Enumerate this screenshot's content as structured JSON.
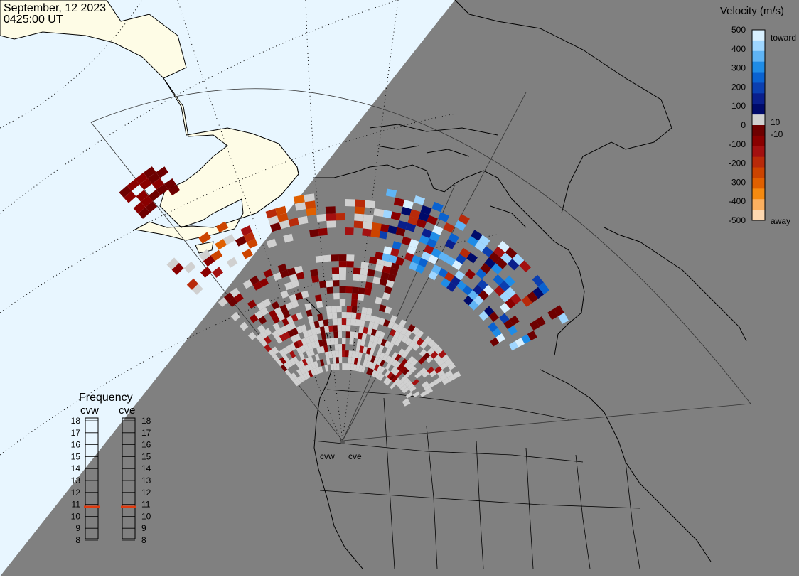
{
  "header": {
    "date": "September, 12 2023",
    "time": "0425:00 UT"
  },
  "colors": {
    "night_background": "#808080",
    "day_ocean": "#e8f6ff",
    "day_land": "#fefce6",
    "ground_scatter": "#d0d0d0",
    "active_frequency": "#e03c10"
  },
  "velocity_scale": {
    "title": "Velocity (m/s)",
    "toward_label": "toward",
    "away_label": "away",
    "tick_labels": [
      "500",
      "400",
      "300",
      "200",
      "100",
      "0",
      "-100",
      "-200",
      "-300",
      "-400",
      "-500"
    ],
    "inner_labels": [
      "10",
      "-10"
    ],
    "colors_top_to_bottom": [
      "#d8f0ff",
      "#9fd6ff",
      "#5fb4f5",
      "#1f8ce6",
      "#0a62d0",
      "#0b3fb0",
      "#0a1f8c",
      "#000a6a",
      "#d0d0d0",
      "#6e0000",
      "#8a0000",
      "#a31010",
      "#b82a0a",
      "#cc4400",
      "#e06000",
      "#f58a10",
      "#fbb060",
      "#fed8b0"
    ]
  },
  "frequency_panel": {
    "title": "Frequency",
    "radars": [
      "cvw",
      "cve"
    ],
    "scale_labels": [
      "18",
      "17",
      "16",
      "15",
      "14",
      "13",
      "12",
      "11",
      "10",
      "9",
      "8"
    ],
    "active_mhz": {
      "cvw": 10.8,
      "cve": 10.8
    }
  },
  "map": {
    "radar_labels": [
      "cvw",
      "cve"
    ]
  }
}
